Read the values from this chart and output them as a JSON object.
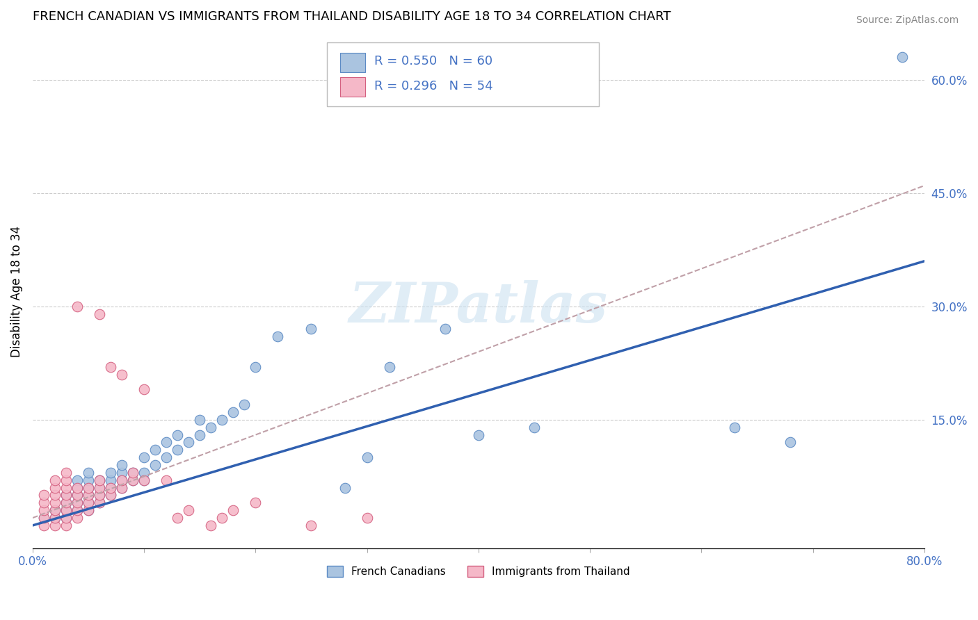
{
  "title": "FRENCH CANADIAN VS IMMIGRANTS FROM THAILAND DISABILITY AGE 18 TO 34 CORRELATION CHART",
  "source": "Source: ZipAtlas.com",
  "ylabel": "Disability Age 18 to 34",
  "xlim": [
    0.0,
    0.8
  ],
  "ylim": [
    -0.02,
    0.66
  ],
  "xticks": [
    0.0,
    0.1,
    0.2,
    0.3,
    0.4,
    0.5,
    0.6,
    0.7,
    0.8
  ],
  "yticks_right": [
    0.15,
    0.3,
    0.45,
    0.6
  ],
  "ytick_right_labels": [
    "15.0%",
    "30.0%",
    "45.0%",
    "60.0%"
  ],
  "r_blue": 0.55,
  "n_blue": 60,
  "r_pink": 0.296,
  "n_pink": 54,
  "blue_color": "#aac4e0",
  "blue_edge_color": "#5b8ac4",
  "pink_color": "#f5b8c8",
  "pink_edge_color": "#d46080",
  "blue_line_color": "#3060b0",
  "dashed_line_color": "#c0a0a8",
  "watermark": "ZIPatlas",
  "blue_x": [
    0.01,
    0.02,
    0.02,
    0.03,
    0.03,
    0.03,
    0.03,
    0.04,
    0.04,
    0.04,
    0.04,
    0.04,
    0.05,
    0.05,
    0.05,
    0.05,
    0.05,
    0.05,
    0.06,
    0.06,
    0.06,
    0.06,
    0.07,
    0.07,
    0.07,
    0.07,
    0.08,
    0.08,
    0.08,
    0.08,
    0.09,
    0.09,
    0.1,
    0.1,
    0.1,
    0.11,
    0.11,
    0.12,
    0.12,
    0.13,
    0.13,
    0.14,
    0.15,
    0.15,
    0.16,
    0.17,
    0.18,
    0.19,
    0.2,
    0.22,
    0.25,
    0.28,
    0.3,
    0.32,
    0.37,
    0.4,
    0.45,
    0.63,
    0.68,
    0.78
  ],
  "blue_y": [
    0.02,
    0.02,
    0.03,
    0.02,
    0.03,
    0.04,
    0.05,
    0.03,
    0.04,
    0.05,
    0.06,
    0.07,
    0.03,
    0.04,
    0.05,
    0.06,
    0.07,
    0.08,
    0.04,
    0.05,
    0.06,
    0.07,
    0.05,
    0.06,
    0.07,
    0.08,
    0.06,
    0.07,
    0.08,
    0.09,
    0.07,
    0.08,
    0.07,
    0.08,
    0.1,
    0.09,
    0.11,
    0.1,
    0.12,
    0.11,
    0.13,
    0.12,
    0.13,
    0.15,
    0.14,
    0.15,
    0.16,
    0.17,
    0.22,
    0.26,
    0.27,
    0.06,
    0.1,
    0.22,
    0.27,
    0.13,
    0.14,
    0.14,
    0.12,
    0.63
  ],
  "pink_x": [
    0.01,
    0.01,
    0.01,
    0.01,
    0.01,
    0.02,
    0.02,
    0.02,
    0.02,
    0.02,
    0.02,
    0.02,
    0.03,
    0.03,
    0.03,
    0.03,
    0.03,
    0.03,
    0.03,
    0.03,
    0.04,
    0.04,
    0.04,
    0.04,
    0.04,
    0.04,
    0.05,
    0.05,
    0.05,
    0.05,
    0.06,
    0.06,
    0.06,
    0.06,
    0.06,
    0.07,
    0.07,
    0.07,
    0.08,
    0.08,
    0.08,
    0.09,
    0.09,
    0.1,
    0.1,
    0.12,
    0.13,
    0.14,
    0.16,
    0.17,
    0.18,
    0.2,
    0.25,
    0.3
  ],
  "pink_y": [
    0.01,
    0.02,
    0.03,
    0.04,
    0.05,
    0.01,
    0.02,
    0.03,
    0.04,
    0.05,
    0.06,
    0.07,
    0.01,
    0.02,
    0.03,
    0.04,
    0.05,
    0.06,
    0.07,
    0.08,
    0.02,
    0.03,
    0.04,
    0.05,
    0.06,
    0.3,
    0.03,
    0.04,
    0.05,
    0.06,
    0.04,
    0.05,
    0.06,
    0.07,
    0.29,
    0.05,
    0.06,
    0.22,
    0.06,
    0.07,
    0.21,
    0.07,
    0.08,
    0.07,
    0.19,
    0.07,
    0.02,
    0.03,
    0.01,
    0.02,
    0.03,
    0.04,
    0.01,
    0.02
  ]
}
